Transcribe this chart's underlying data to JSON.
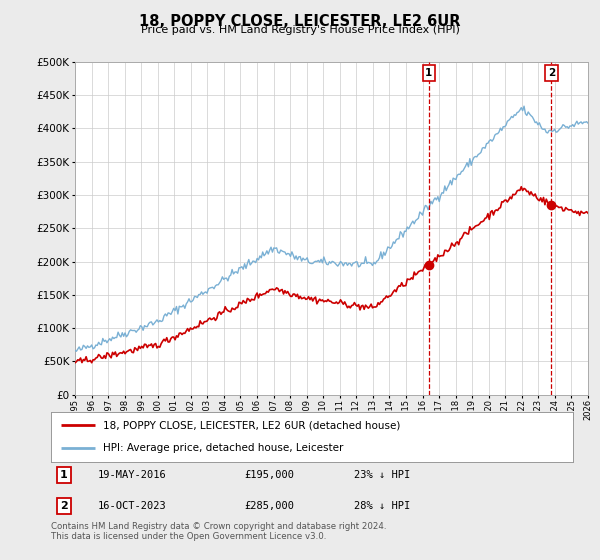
{
  "title": "18, POPPY CLOSE, LEICESTER, LE2 6UR",
  "subtitle": "Price paid vs. HM Land Registry's House Price Index (HPI)",
  "line1_label": "18, POPPY CLOSE, LEICESTER, LE2 6UR (detached house)",
  "line2_label": "HPI: Average price, detached house, Leicester",
  "line1_color": "#cc0000",
  "line2_color": "#7ab0d4",
  "transaction1_date": "19-MAY-2016",
  "transaction1_price": 195000,
  "transaction1_hpi": "23% ↓ HPI",
  "transaction1_year": 2016.38,
  "transaction2_date": "16-OCT-2023",
  "transaction2_price": 285000,
  "transaction2_hpi": "28% ↓ HPI",
  "transaction2_year": 2023.79,
  "marker1_price": 195000,
  "marker2_price": 285000,
  "ylim": [
    0,
    500000
  ],
  "xlim": [
    1995,
    2026
  ],
  "yticks": [
    0,
    50000,
    100000,
    150000,
    200000,
    250000,
    300000,
    350000,
    400000,
    450000,
    500000
  ],
  "footer": "Contains HM Land Registry data © Crown copyright and database right 2024.\nThis data is licensed under the Open Government Licence v3.0.",
  "background_color": "#ebebeb",
  "plot_background": "#ffffff"
}
